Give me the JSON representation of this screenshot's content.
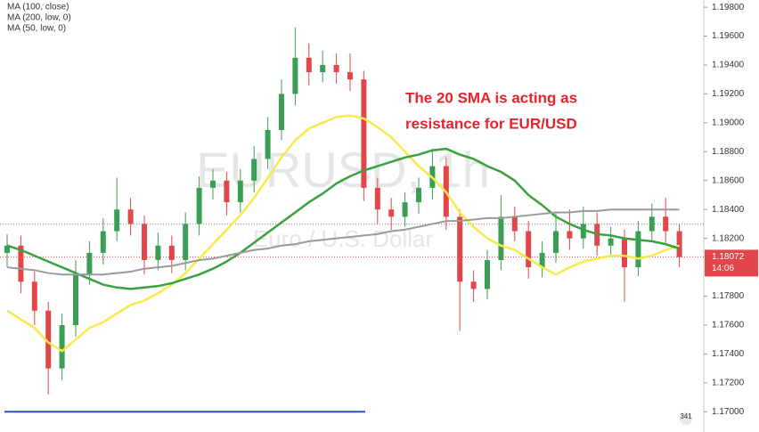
{
  "chart_data": {
    "type": "candlestick",
    "legend": [
      "MA (100, close)",
      "MA (200, low, 0)",
      "MA (50, low, 0)"
    ],
    "watermark": "EURUSD, 1h",
    "watermark_subtitle": "Euro / U.S. Dollar",
    "annotation": [
      "The 20 SMA is acting as",
      "resistance for EUR/USD"
    ],
    "annotation_color": "#e8232b",
    "up_color": "#3b9e55",
    "down_color": "#e2454a",
    "ylim": [
      1.1686,
      1.1985
    ],
    "yticks": [
      {
        "value": 1.17,
        "label": "1.17000"
      },
      {
        "value": 1.172,
        "label": "1.17200"
      },
      {
        "value": 1.174,
        "label": "1.17400"
      },
      {
        "value": 1.176,
        "label": "1.17600"
      },
      {
        "value": 1.178,
        "label": "1.17800"
      },
      {
        "value": 1.182,
        "label": "1.18200"
      },
      {
        "value": 1.184,
        "label": "1.18400"
      },
      {
        "value": 1.186,
        "label": "1.18600"
      },
      {
        "value": 1.188,
        "label": "1.18800"
      },
      {
        "value": 1.19,
        "label": "1.19000"
      },
      {
        "value": 1.192,
        "label": "1.19200"
      },
      {
        "value": 1.194,
        "label": "1.19400"
      },
      {
        "value": 1.196,
        "label": "1.19600"
      },
      {
        "value": 1.198,
        "label": "1.19800"
      }
    ],
    "open": [
      1.181,
      1.1815,
      1.179,
      1.177,
      1.173,
      1.176,
      1.1795,
      1.181,
      1.1825,
      1.184,
      1.183,
      1.1805,
      1.1815,
      1.1805,
      1.183,
      1.1855,
      1.186,
      1.1845,
      1.186,
      1.1875,
      1.1895,
      1.192,
      1.1945,
      1.1935,
      1.194,
      1.1935,
      1.193,
      1.1855,
      1.184,
      1.1835,
      1.1845,
      1.1855,
      1.187,
      1.1835,
      1.179,
      1.1785,
      1.1805,
      1.1835,
      1.1825,
      1.18,
      1.181,
      1.1825,
      1.182,
      1.183,
      1.1815,
      1.182,
      1.18,
      1.1825,
      1.1835,
      1.1825
    ],
    "high": [
      1.1823,
      1.1822,
      1.1797,
      1.1776,
      1.1768,
      1.1805,
      1.1818,
      1.1834,
      1.1862,
      1.1848,
      1.1836,
      1.1824,
      1.1822,
      1.1838,
      1.1863,
      1.1868,
      1.1866,
      1.1868,
      1.1884,
      1.1904,
      1.193,
      1.1966,
      1.1955,
      1.195,
      1.1948,
      1.1948,
      1.1936,
      1.1862,
      1.1848,
      1.1852,
      1.1862,
      1.1882,
      1.1876,
      1.184,
      1.1798,
      1.1812,
      1.185,
      1.1842,
      1.1832,
      1.1818,
      1.1838,
      1.184,
      1.1842,
      1.1838,
      1.1828,
      1.1826,
      1.1832,
      1.1844,
      1.1848,
      1.183
    ],
    "low": [
      1.18,
      1.1782,
      1.176,
      1.1712,
      1.1722,
      1.1752,
      1.1788,
      1.1802,
      1.1818,
      1.1822,
      1.1795,
      1.1798,
      1.1796,
      1.1798,
      1.1822,
      1.1847,
      1.1836,
      1.1838,
      1.1852,
      1.1868,
      1.1888,
      1.1912,
      1.1926,
      1.1928,
      1.1927,
      1.1922,
      1.1846,
      1.183,
      1.1826,
      1.1828,
      1.1837,
      1.1847,
      1.1826,
      1.1756,
      1.1776,
      1.1778,
      1.1798,
      1.1818,
      1.1792,
      1.1793,
      1.1803,
      1.1812,
      1.1813,
      1.1808,
      1.1808,
      1.1776,
      1.1794,
      1.1818,
      1.1817,
      1.18
    ],
    "close": [
      1.1815,
      1.179,
      1.177,
      1.173,
      1.176,
      1.1795,
      1.181,
      1.1825,
      1.184,
      1.183,
      1.1805,
      1.1815,
      1.1805,
      1.183,
      1.1855,
      1.186,
      1.1845,
      1.186,
      1.1875,
      1.1895,
      1.192,
      1.1945,
      1.1935,
      1.194,
      1.1935,
      1.193,
      1.1855,
      1.184,
      1.1835,
      1.1845,
      1.1855,
      1.187,
      1.1835,
      1.179,
      1.1785,
      1.1805,
      1.1835,
      1.1825,
      1.18,
      1.181,
      1.1825,
      1.182,
      1.183,
      1.1815,
      1.182,
      1.18,
      1.1825,
      1.1835,
      1.1825,
      1.1807
    ],
    "series": [
      {
        "color": "#f7ea4a",
        "values": [
          1.177,
          1.1764,
          1.1758,
          1.1748,
          1.1742,
          1.175,
          1.1758,
          1.1762,
          1.1768,
          1.1774,
          1.1777,
          1.1782,
          1.1788,
          1.1796,
          1.1806,
          1.1816,
          1.1826,
          1.1836,
          1.1848,
          1.1862,
          1.1876,
          1.1888,
          1.1896,
          1.19,
          1.1904,
          1.1905,
          1.1903,
          1.1897,
          1.189,
          1.188,
          1.187,
          1.1862,
          1.1852,
          1.1838,
          1.1828,
          1.182,
          1.1815,
          1.1812,
          1.1806,
          1.18,
          1.1795,
          1.18,
          1.1804,
          1.1806,
          1.1808,
          1.1808,
          1.1806,
          1.1808,
          1.1812,
          1.1815
        ]
      },
      {
        "color": "#3aa13f",
        "values": [
          1.1815,
          1.1812,
          1.1808,
          1.1804,
          1.18,
          1.1796,
          1.1792,
          1.1788,
          1.1786,
          1.1785,
          1.1786,
          1.1787,
          1.1789,
          1.1792,
          1.1795,
          1.1799,
          1.1804,
          1.181,
          1.1817,
          1.1824,
          1.1831,
          1.1838,
          1.1845,
          1.1851,
          1.1858,
          1.1863,
          1.1867,
          1.187,
          1.1873,
          1.1876,
          1.1878,
          1.1881,
          1.1882,
          1.1878,
          1.1875,
          1.187,
          1.1866,
          1.186,
          1.185,
          1.1843,
          1.1835,
          1.183,
          1.1826,
          1.1823,
          1.1822,
          1.182,
          1.1819,
          1.1818,
          1.1816,
          1.1813
        ]
      },
      {
        "color": "#9a9a9a",
        "values": [
          1.18,
          1.1799,
          1.1798,
          1.1796,
          1.1795,
          1.1795,
          1.1795,
          1.1795,
          1.1796,
          1.1797,
          1.1799,
          1.18,
          1.1801,
          1.1803,
          1.1805,
          1.1806,
          1.1808,
          1.181,
          1.1812,
          1.1813,
          1.1815,
          1.1816,
          1.1818,
          1.1819,
          1.182,
          1.1821,
          1.1822,
          1.1823,
          1.1825,
          1.1826,
          1.1828,
          1.183,
          1.1832,
          1.1832,
          1.1833,
          1.1834,
          1.1834,
          1.1835,
          1.1836,
          1.1837,
          1.1838,
          1.1838,
          1.1839,
          1.1839,
          1.184,
          1.184,
          1.184,
          1.184,
          1.184,
          1.184
        ]
      }
    ],
    "last_price": 1.18072,
    "countdown": "14:06",
    "reference_line": 1.183,
    "support_line": 1.17,
    "support_color": "#1f4fb5",
    "badge": "341"
  }
}
